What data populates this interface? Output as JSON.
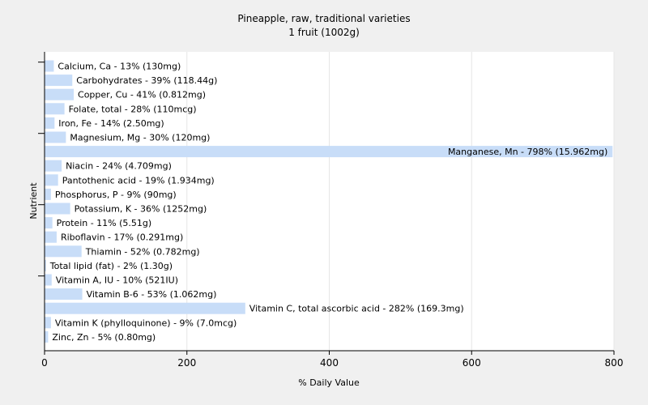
{
  "chart_data": {
    "type": "bar",
    "orientation": "horizontal",
    "title": "Pineapple, raw, traditional varieties",
    "subtitle": "1 fruit (1002g)",
    "xlabel": "% Daily Value",
    "ylabel": "Nutrient",
    "xlim": [
      0,
      800
    ],
    "xticks": [
      "0",
      "200",
      "400",
      "600",
      "800"
    ],
    "grid": true,
    "bar_color": "#c8ddf8",
    "background": "#ffffff",
    "categories": [
      "Calcium, Ca - 13% (130mg)",
      "Carbohydrates - 39% (118.44g)",
      "Copper, Cu - 41% (0.812mg)",
      "Folate, total - 28% (110mcg)",
      "Iron, Fe - 14% (2.50mg)",
      "Magnesium, Mg - 30% (120mg)",
      "Manganese, Mn - 798% (15.962mg)",
      "Niacin - 24% (4.709mg)",
      "Pantothenic acid - 19% (1.934mg)",
      "Phosphorus, P - 9% (90mg)",
      "Potassium, K - 36% (1252mg)",
      "Protein - 11% (5.51g)",
      "Riboflavin - 17% (0.291mg)",
      "Thiamin - 52% (0.782mg)",
      "Total lipid (fat) - 2% (1.30g)",
      "Vitamin A, IU - 10% (521IU)",
      "Vitamin B-6 - 53% (1.062mg)",
      "Vitamin C, total ascorbic acid - 282% (169.3mg)",
      "Vitamin K (phylloquinone) - 9% (7.0mcg)",
      "Zinc, Zn - 5% (0.80mg)"
    ],
    "values": [
      13,
      39,
      41,
      28,
      14,
      30,
      798,
      24,
      19,
      9,
      36,
      11,
      17,
      52,
      2,
      10,
      53,
      282,
      9,
      5
    ]
  }
}
